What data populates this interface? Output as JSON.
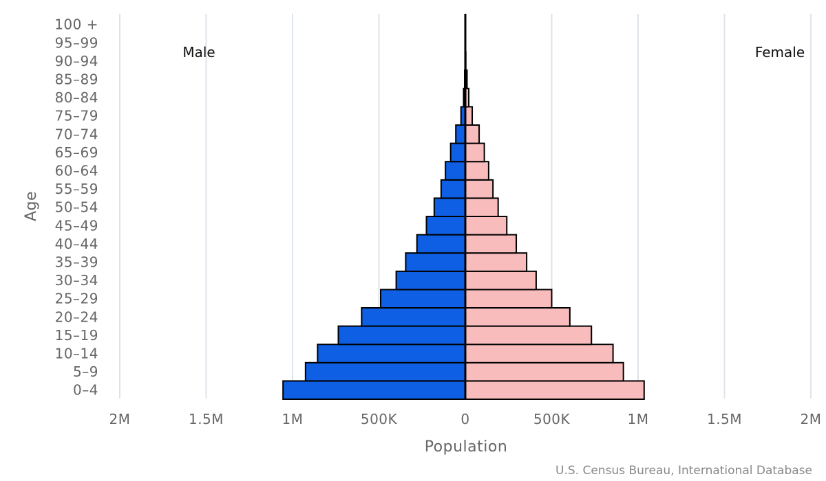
{
  "chart_data": {
    "type": "bar",
    "orientation": "horizontal",
    "style": "population-pyramid",
    "categories": [
      "0-4",
      "5-9",
      "10-14",
      "15-19",
      "20-24",
      "25-29",
      "30-34",
      "35-39",
      "40-44",
      "45-49",
      "50-54",
      "55-59",
      "60-64",
      "65-69",
      "70-74",
      "75-79",
      "80-84",
      "85-89",
      "90-94",
      "95-99",
      "100 +"
    ],
    "series": [
      {
        "name": "Male",
        "color": "#0e5fe3",
        "values": [
          1055000,
          925000,
          855000,
          735000,
          600000,
          490000,
          400000,
          345000,
          280000,
          225000,
          180000,
          140000,
          115000,
          85000,
          55000,
          25000,
          10000,
          4000,
          2000,
          1000,
          500
        ]
      },
      {
        "name": "Female",
        "color": "#f8bcbd",
        "values": [
          1035000,
          915000,
          855000,
          730000,
          605000,
          500000,
          410000,
          355000,
          295000,
          240000,
          190000,
          160000,
          135000,
          110000,
          80000,
          40000,
          20000,
          10000,
          3000,
          1000,
          500
        ]
      }
    ],
    "xlabel": "Population",
    "ylabel": "Age",
    "x_ticks": [
      {
        "value": -2000000,
        "label": "2M"
      },
      {
        "value": -1500000,
        "label": "1.5M"
      },
      {
        "value": -1000000,
        "label": "1M"
      },
      {
        "value": -500000,
        "label": "500K"
      },
      {
        "value": 0,
        "label": "0"
      },
      {
        "value": 500000,
        "label": "500K"
      },
      {
        "value": 1000000,
        "label": "1M"
      },
      {
        "value": 1500000,
        "label": "1.5M"
      },
      {
        "value": 2000000,
        "label": "2M"
      }
    ],
    "xlim": [
      -2000000,
      2000000
    ],
    "grid": true,
    "panel_labels": {
      "left": "Male",
      "right": "Female"
    },
    "source": "U.S. Census Bureau, International Database"
  }
}
